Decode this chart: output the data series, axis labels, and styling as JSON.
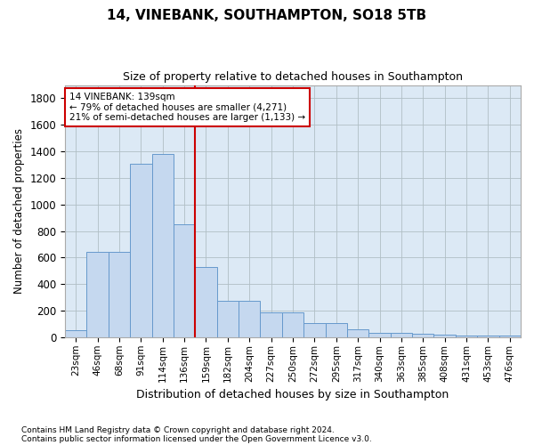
{
  "title1": "14, VINEBANK, SOUTHAMPTON, SO18 5TB",
  "title2": "Size of property relative to detached houses in Southampton",
  "xlabel": "Distribution of detached houses by size in Southampton",
  "ylabel": "Number of detached properties",
  "footnote1": "Contains HM Land Registry data © Crown copyright and database right 2024.",
  "footnote2": "Contains public sector information licensed under the Open Government Licence v3.0.",
  "annotation_line1": "14 VINEBANK: 139sqm",
  "annotation_line2": "← 79% of detached houses are smaller (4,271)",
  "annotation_line3": "21% of semi-detached houses are larger (1,133) →",
  "bar_categories": [
    "23sqm",
    "46sqm",
    "68sqm",
    "91sqm",
    "114sqm",
    "136sqm",
    "159sqm",
    "182sqm",
    "204sqm",
    "227sqm",
    "250sqm",
    "272sqm",
    "295sqm",
    "317sqm",
    "340sqm",
    "363sqm",
    "385sqm",
    "408sqm",
    "431sqm",
    "453sqm",
    "476sqm"
  ],
  "bar_values": [
    50,
    640,
    640,
    1310,
    1380,
    850,
    530,
    275,
    275,
    185,
    185,
    105,
    105,
    60,
    35,
    35,
    25,
    20,
    15,
    10,
    10
  ],
  "bar_color": "#c5d8ef",
  "bar_edge_color": "#6699cc",
  "vline_color": "#cc0000",
  "annotation_box_color": "#cc0000",
  "plot_bg_color": "#dce9f5",
  "background_color": "#ffffff",
  "grid_color": "#b0bec5",
  "ylim": [
    0,
    1900
  ],
  "yticks": [
    0,
    200,
    400,
    600,
    800,
    1000,
    1200,
    1400,
    1600,
    1800
  ]
}
